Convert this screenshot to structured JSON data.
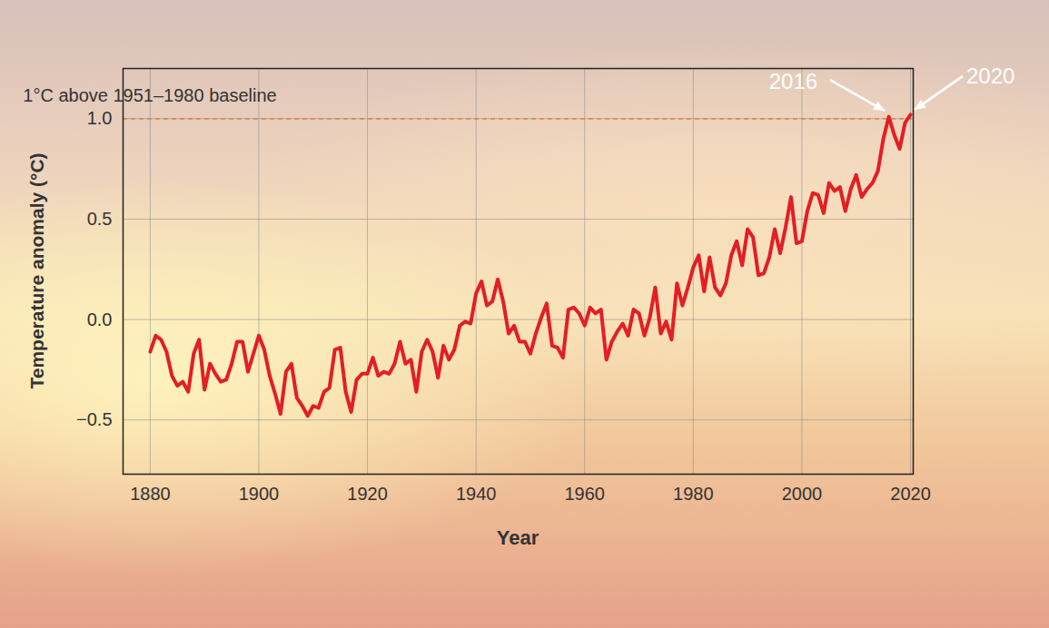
{
  "chart_data": {
    "type": "line",
    "xlabel": "Year",
    "ylabel": "Temperature anomaly (°C)",
    "color": "#e31e24",
    "grid": true,
    "xlim": [
      1875,
      2020.5
    ],
    "xticks": [
      1880,
      1900,
      1920,
      1940,
      1960,
      1980,
      2000,
      2020
    ],
    "ylim": [
      -0.77,
      1.25
    ],
    "yticks": [
      {
        "value": -0.5,
        "label": "−0.5"
      },
      {
        "value": 0,
        "label": "0.0"
      },
      0.5,
      {
        "value": 1.0,
        "label": "1.0"
      }
    ],
    "reference_line": {
      "value": 1.0,
      "label": "1°C above 1951–1980 baseline",
      "color": "#e8742c",
      "line_style": "dashed"
    },
    "annotations": [
      {
        "text": "2016",
        "x": 2016,
        "y": 1.01
      },
      {
        "text": "2020",
        "x": 2020,
        "y": 1.02
      }
    ],
    "x": [
      1880,
      1881,
      1882,
      1883,
      1884,
      1885,
      1886,
      1887,
      1888,
      1889,
      1890,
      1891,
      1892,
      1893,
      1894,
      1895,
      1896,
      1897,
      1898,
      1899,
      1900,
      1901,
      1902,
      1903,
      1904,
      1905,
      1906,
      1907,
      1908,
      1909,
      1910,
      1911,
      1912,
      1913,
      1914,
      1915,
      1916,
      1917,
      1918,
      1919,
      1920,
      1921,
      1922,
      1923,
      1924,
      1925,
      1926,
      1927,
      1928,
      1929,
      1930,
      1931,
      1932,
      1933,
      1934,
      1935,
      1936,
      1937,
      1938,
      1939,
      1940,
      1941,
      1942,
      1943,
      1944,
      1945,
      1946,
      1947,
      1948,
      1949,
      1950,
      1951,
      1952,
      1953,
      1954,
      1955,
      1956,
      1957,
      1958,
      1959,
      1960,
      1961,
      1962,
      1963,
      1964,
      1965,
      1966,
      1967,
      1968,
      1969,
      1970,
      1971,
      1972,
      1973,
      1974,
      1975,
      1976,
      1977,
      1978,
      1979,
      1980,
      1981,
      1982,
      1983,
      1984,
      1985,
      1986,
      1987,
      1988,
      1989,
      1990,
      1991,
      1992,
      1993,
      1994,
      1995,
      1996,
      1997,
      1998,
      1999,
      2000,
      2001,
      2002,
      2003,
      2004,
      2005,
      2006,
      2007,
      2008,
      2009,
      2010,
      2011,
      2012,
      2013,
      2014,
      2015,
      2016,
      2017,
      2018,
      2019,
      2020
    ],
    "values": [
      -0.16,
      -0.08,
      -0.1,
      -0.16,
      -0.28,
      -0.33,
      -0.31,
      -0.36,
      -0.17,
      -0.1,
      -0.35,
      -0.22,
      -0.27,
      -0.31,
      -0.3,
      -0.22,
      -0.11,
      -0.11,
      -0.26,
      -0.17,
      -0.08,
      -0.15,
      -0.28,
      -0.37,
      -0.47,
      -0.26,
      -0.22,
      -0.39,
      -0.43,
      -0.48,
      -0.43,
      -0.44,
      -0.36,
      -0.34,
      -0.15,
      -0.14,
      -0.36,
      -0.46,
      -0.3,
      -0.27,
      -0.27,
      -0.19,
      -0.28,
      -0.26,
      -0.27,
      -0.22,
      -0.11,
      -0.22,
      -0.2,
      -0.36,
      -0.16,
      -0.1,
      -0.16,
      -0.29,
      -0.13,
      -0.2,
      -0.15,
      -0.03,
      -0.01,
      -0.02,
      0.13,
      0.19,
      0.07,
      0.09,
      0.2,
      0.09,
      -0.07,
      -0.03,
      -0.11,
      -0.11,
      -0.17,
      -0.07,
      0.01,
      0.08,
      -0.13,
      -0.14,
      -0.19,
      0.05,
      0.06,
      0.03,
      -0.03,
      0.06,
      0.03,
      0.05,
      -0.2,
      -0.11,
      -0.06,
      -0.02,
      -0.08,
      0.05,
      0.03,
      -0.08,
      0.01,
      0.16,
      -0.07,
      -0.01,
      -0.1,
      0.18,
      0.07,
      0.16,
      0.26,
      0.32,
      0.14,
      0.31,
      0.16,
      0.12,
      0.18,
      0.32,
      0.39,
      0.27,
      0.45,
      0.41,
      0.22,
      0.23,
      0.31,
      0.45,
      0.33,
      0.46,
      0.61,
      0.38,
      0.39,
      0.54,
      0.63,
      0.62,
      0.53,
      0.68,
      0.64,
      0.66,
      0.54,
      0.65,
      0.72,
      0.61,
      0.65,
      0.68,
      0.74,
      0.9,
      1.01,
      0.92,
      0.85,
      0.98,
      1.02
    ]
  }
}
